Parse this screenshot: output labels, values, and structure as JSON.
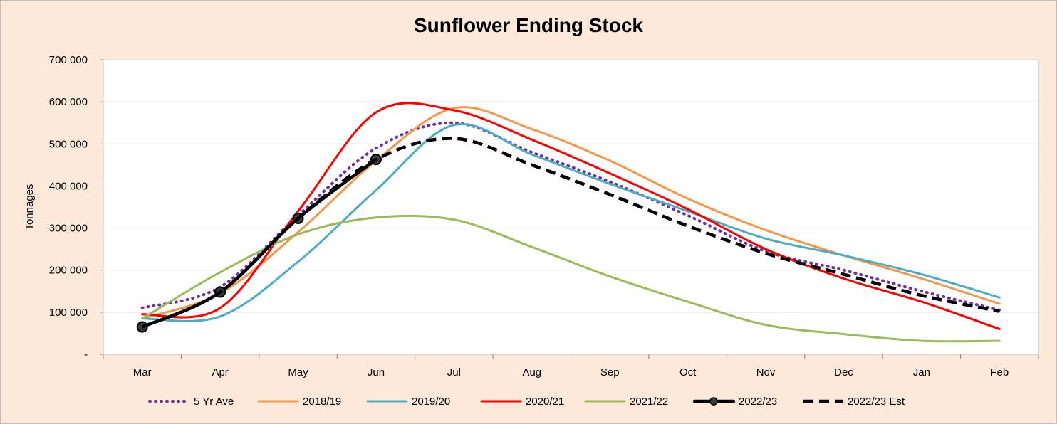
{
  "chart_data": {
    "type": "line",
    "title": "Sunflower Ending Stock",
    "xlabel": "",
    "ylabel": "Tonnages",
    "categories": [
      "Mar",
      "Apr",
      "May",
      "Jun",
      "Jul",
      "Aug",
      "Sep",
      "Oct",
      "Nov",
      "Dec",
      "Jan",
      "Feb"
    ],
    "y_tick_labels": [
      "-",
      "100 000",
      "200 000",
      "300 000",
      "400 000",
      "500 000",
      "600 000",
      "700 000"
    ],
    "ylim": [
      0,
      700000
    ],
    "grid": true,
    "legend_position": "bottom",
    "series": [
      {
        "name": "5 Yr Ave",
        "color": "#7030a0",
        "style": "dotted",
        "values": [
          110000,
          160000,
          330000,
          490000,
          550000,
          480000,
          410000,
          330000,
          245000,
          200000,
          150000,
          105000
        ]
      },
      {
        "name": "2018/19",
        "color": "#f79646",
        "style": "solid",
        "values": [
          85000,
          145000,
          290000,
          460000,
          585000,
          535000,
          460000,
          370000,
          295000,
          235000,
          180000,
          120000
        ]
      },
      {
        "name": "2019/20",
        "color": "#4bacc6",
        "style": "solid",
        "values": [
          85000,
          90000,
          220000,
          390000,
          545000,
          475000,
          405000,
          340000,
          275000,
          235000,
          190000,
          135000
        ]
      },
      {
        "name": "2020/21",
        "color": "#ff0000",
        "style": "solid",
        "values": [
          95000,
          110000,
          340000,
          575000,
          580000,
          510000,
          430000,
          345000,
          250000,
          180000,
          125000,
          60000
        ]
      },
      {
        "name": "2021/22",
        "color": "#9bbb59",
        "style": "solid",
        "values": [
          85000,
          195000,
          285000,
          325000,
          320000,
          255000,
          185000,
          125000,
          70000,
          48000,
          32000,
          32000
        ]
      },
      {
        "name": "2022/23",
        "color": "#000000",
        "style": "solid-marker",
        "values": [
          65000,
          148000,
          323000,
          463000,
          null,
          null,
          null,
          null,
          null,
          null,
          null,
          null
        ]
      },
      {
        "name": "2022/23 Est",
        "color": "#000000",
        "style": "dashed",
        "values": [
          65000,
          148000,
          323000,
          463000,
          513000,
          450000,
          380000,
          305000,
          240000,
          190000,
          140000,
          102000
        ]
      }
    ]
  }
}
